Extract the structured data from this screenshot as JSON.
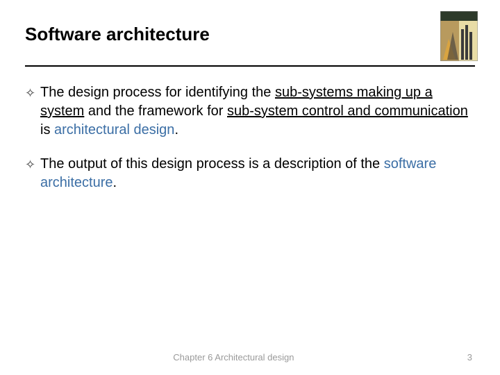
{
  "slide": {
    "title": "Software architecture",
    "bullets": [
      {
        "marker": "✧",
        "runs": [
          {
            "t": "The design process for identifying the "
          },
          {
            "t": "sub-systems making up a system",
            "u": true
          },
          {
            "t": " and the framework for "
          },
          {
            "t": "sub-system control and communication ",
            "u": true
          },
          {
            "t": "is "
          },
          {
            "t": "architectural design",
            "hl": true
          },
          {
            "t": "."
          }
        ]
      },
      {
        "marker": "✧",
        "runs": [
          {
            "t": "The output of this design process is a description of the "
          },
          {
            "t": "software architecture",
            "hl": true
          },
          {
            "t": "."
          }
        ]
      }
    ],
    "footer": {
      "center": "Chapter 6 Architectural design",
      "page": "3"
    },
    "colors": {
      "text": "#000000",
      "highlight": "#3b6ea5",
      "footer": "#9a9a9a",
      "rule": "#000000",
      "background": "#ffffff"
    },
    "book_cover": {
      "top_band": "#2d3a2a",
      "left_panel": "#b89a5e",
      "right_panel": "#e8dca6",
      "accent": "#d9a441",
      "dark": "#3b3b3b"
    }
  }
}
